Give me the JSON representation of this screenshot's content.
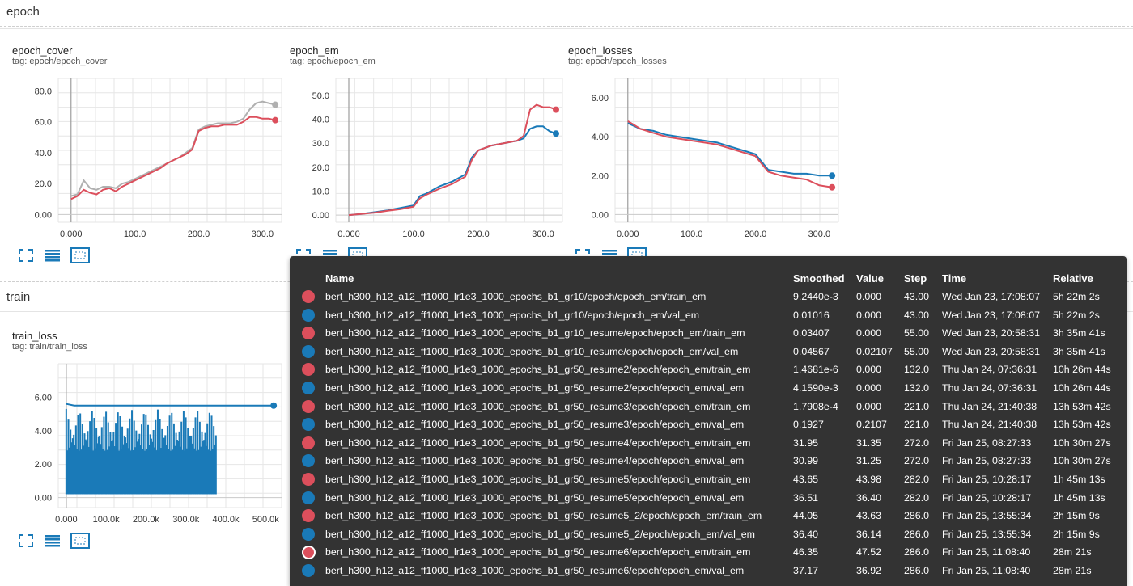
{
  "sections": {
    "epoch": "epoch",
    "train": "train"
  },
  "colors": {
    "red": "#dc4f5c",
    "blue": "#1a7ab8",
    "gray": "#b0b0b0"
  },
  "cards": [
    {
      "title": "epoch_cover",
      "tag": "tag: epoch/epoch_cover",
      "y_ticks": [
        "80.0",
        "60.0",
        "40.0",
        "20.0",
        "0.00"
      ],
      "x_ticks": [
        "0.000",
        "100.0",
        "200.0",
        "300.0"
      ],
      "controls": [
        "expand-icon",
        "data-table-icon",
        "fit-domain-icon"
      ]
    },
    {
      "title": "epoch_em",
      "tag": "tag: epoch/epoch_em",
      "y_ticks": [
        "50.0",
        "40.0",
        "30.0",
        "20.0",
        "10.0",
        "0.00"
      ],
      "x_ticks": [
        "0.000",
        "100.0",
        "200.0",
        "300.0"
      ],
      "controls": [
        "expand-icon",
        "data-table-icon",
        "fit-domain-icon"
      ]
    },
    {
      "title": "epoch_losses",
      "tag": "tag: epoch/epoch_losses",
      "y_ticks": [
        "6.00",
        "4.00",
        "2.00",
        "0.00"
      ],
      "x_ticks": [
        "0.000",
        "100.0",
        "200.0",
        "300.0"
      ],
      "controls": [
        "expand-icon",
        "data-table-icon",
        "fit-domain-icon"
      ]
    },
    {
      "title": "train_loss",
      "tag": "tag: train/train_loss",
      "y_ticks": [
        "6.00",
        "4.00",
        "2.00",
        "0.00"
      ],
      "x_ticks": [
        "0.000",
        "100.0k",
        "200.0k",
        "300.0k",
        "400.0k",
        "500.0k"
      ],
      "controls": [
        "expand-icon",
        "data-table-icon",
        "fit-domain-icon"
      ]
    }
  ],
  "tooltip": {
    "headers": {
      "name": "Name",
      "smoothed": "Smoothed",
      "value": "Value",
      "step": "Step",
      "time": "Time",
      "relative": "Relative"
    },
    "rows": [
      {
        "color": "red",
        "name": "bert_h300_h12_a12_ff1000_lr1e3_1000_epochs_b1_gr10/epoch/epoch_em/train_em",
        "smoothed": "9.2440e-3",
        "value": "0.000",
        "step": "43.00",
        "time": "Wed Jan 23, 17:08:07",
        "relative": "5h 22m 2s"
      },
      {
        "color": "blue",
        "name": "bert_h300_h12_a12_ff1000_lr1e3_1000_epochs_b1_gr10/epoch/epoch_em/val_em",
        "smoothed": "0.01016",
        "value": "0.000",
        "step": "43.00",
        "time": "Wed Jan 23, 17:08:07",
        "relative": "5h 22m 2s"
      },
      {
        "color": "red",
        "name": "bert_h300_h12_a12_ff1000_lr1e3_1000_epochs_b1_gr10_resume/epoch/epoch_em/train_em",
        "smoothed": "0.03407",
        "value": "0.000",
        "step": "55.00",
        "time": "Wed Jan 23, 20:58:31",
        "relative": "3h 35m 41s"
      },
      {
        "color": "blue",
        "name": "bert_h300_h12_a12_ff1000_lr1e3_1000_epochs_b1_gr10_resume/epoch/epoch_em/val_em",
        "smoothed": "0.04567",
        "value": "0.02107",
        "step": "55.00",
        "time": "Wed Jan 23, 20:58:31",
        "relative": "3h 35m 41s"
      },
      {
        "color": "red",
        "name": "bert_h300_h12_a12_ff1000_lr1e3_1000_epochs_b1_gr50_resume2/epoch/epoch_em/train_em",
        "smoothed": "1.4681e-6",
        "value": "0.000",
        "step": "132.0",
        "time": "Thu Jan 24, 07:36:31",
        "relative": "10h 26m 44s"
      },
      {
        "color": "blue",
        "name": "bert_h300_h12_a12_ff1000_lr1e3_1000_epochs_b1_gr50_resume2/epoch/epoch_em/val_em",
        "smoothed": "4.1590e-3",
        "value": "0.000",
        "step": "132.0",
        "time": "Thu Jan 24, 07:36:31",
        "relative": "10h 26m 44s"
      },
      {
        "color": "red",
        "name": "bert_h300_h12_a12_ff1000_lr1e3_1000_epochs_b1_gr50_resume3/epoch/epoch_em/train_em",
        "smoothed": "1.7908e-4",
        "value": "0.000",
        "step": "221.0",
        "time": "Thu Jan 24, 21:40:38",
        "relative": "13h 53m 42s"
      },
      {
        "color": "blue",
        "name": "bert_h300_h12_a12_ff1000_lr1e3_1000_epochs_b1_gr50_resume3/epoch/epoch_em/val_em",
        "smoothed": "0.1927",
        "value": "0.2107",
        "step": "221.0",
        "time": "Thu Jan 24, 21:40:38",
        "relative": "13h 53m 42s"
      },
      {
        "color": "red",
        "name": "bert_h300_h12_a12_ff1000_lr1e3_1000_epochs_b1_gr50_resume4/epoch/epoch_em/train_em",
        "smoothed": "31.95",
        "value": "31.35",
        "step": "272.0",
        "time": "Fri Jan 25, 08:27:33",
        "relative": "10h 30m 27s"
      },
      {
        "color": "blue",
        "name": "bert_h300_h12_a12_ff1000_lr1e3_1000_epochs_b1_gr50_resume4/epoch/epoch_em/val_em",
        "smoothed": "30.99",
        "value": "31.25",
        "step": "272.0",
        "time": "Fri Jan 25, 08:27:33",
        "relative": "10h 30m 27s"
      },
      {
        "color": "red",
        "name": "bert_h300_h12_a12_ff1000_lr1e3_1000_epochs_b1_gr50_resume5/epoch/epoch_em/train_em",
        "smoothed": "43.65",
        "value": "43.98",
        "step": "282.0",
        "time": "Fri Jan 25, 10:28:17",
        "relative": "1h 45m 13s"
      },
      {
        "color": "blue",
        "name": "bert_h300_h12_a12_ff1000_lr1e3_1000_epochs_b1_gr50_resume5/epoch/epoch_em/val_em",
        "smoothed": "36.51",
        "value": "36.40",
        "step": "282.0",
        "time": "Fri Jan 25, 10:28:17",
        "relative": "1h 45m 13s"
      },
      {
        "color": "red",
        "name": "bert_h300_h12_a12_ff1000_lr1e3_1000_epochs_b1_gr50_resume5_2/epoch/epoch_em/train_em",
        "smoothed": "44.05",
        "value": "43.63",
        "step": "286.0",
        "time": "Fri Jan 25, 13:55:34",
        "relative": "2h 15m 9s"
      },
      {
        "color": "blue",
        "name": "bert_h300_h12_a12_ff1000_lr1e3_1000_epochs_b1_gr50_resume5_2/epoch/epoch_em/val_em",
        "smoothed": "36.40",
        "value": "36.14",
        "step": "286.0",
        "time": "Fri Jan 25, 13:55:34",
        "relative": "2h 15m 9s"
      },
      {
        "color": "red",
        "name": "bert_h300_h12_a12_ff1000_lr1e3_1000_epochs_b1_gr50_resume6/epoch/epoch_em/train_em",
        "smoothed": "46.35",
        "value": "47.52",
        "step": "286.0",
        "time": "Fri Jan 25, 11:08:40",
        "relative": "28m 21s",
        "highlighted": true
      },
      {
        "color": "blue",
        "name": "bert_h300_h12_a12_ff1000_lr1e3_1000_epochs_b1_gr50_resume6/epoch/epoch_em/val_em",
        "smoothed": "37.17",
        "value": "36.92",
        "step": "286.0",
        "time": "Fri Jan 25, 11:08:40",
        "relative": "28m 21s"
      }
    ]
  },
  "chart_data": [
    {
      "type": "line",
      "title": "epoch_cover",
      "subtitle": "tag: epoch/epoch_cover",
      "xlim": [
        -20,
        330
      ],
      "ylim": [
        -5,
        88
      ],
      "series": [
        {
          "color": "gray",
          "x": [
            0,
            10,
            20,
            30,
            40,
            50,
            60,
            70,
            80,
            90,
            100,
            110,
            120,
            130,
            140,
            150,
            160,
            170,
            180,
            190,
            200,
            210,
            220,
            230,
            240,
            250,
            260,
            270,
            280,
            290,
            300,
            310,
            320
          ],
          "y": [
            12,
            13,
            22,
            17,
            16,
            18,
            18,
            17,
            20,
            21,
            23,
            25,
            27,
            29,
            31,
            33,
            35,
            37,
            40,
            43,
            55,
            57,
            58,
            59,
            59,
            59,
            60,
            62,
            68,
            72,
            73,
            72,
            71
          ]
        },
        {
          "color": "red",
          "x": [
            0,
            10,
            20,
            30,
            40,
            50,
            60,
            70,
            80,
            90,
            100,
            110,
            120,
            130,
            140,
            150,
            160,
            170,
            180,
            190,
            200,
            210,
            220,
            230,
            240,
            250,
            260,
            270,
            280,
            290,
            300,
            310,
            320
          ],
          "y": [
            10,
            12,
            16,
            14,
            13,
            16,
            17,
            15,
            18,
            20,
            22,
            24,
            26,
            28,
            30,
            33,
            35,
            37,
            39,
            42,
            54,
            56,
            57,
            57,
            58,
            58,
            58,
            60,
            63,
            63,
            62,
            62,
            61
          ]
        }
      ]
    },
    {
      "type": "line",
      "title": "epoch_em",
      "subtitle": "tag: epoch/epoch_em",
      "xlim": [
        -20,
        330
      ],
      "ylim": [
        -3,
        57
      ],
      "series": [
        {
          "color": "blue",
          "x": [
            0,
            20,
            40,
            60,
            80,
            100,
            110,
            120,
            140,
            160,
            180,
            190,
            200,
            220,
            240,
            260,
            270,
            280,
            290,
            300,
            310,
            320
          ],
          "y": [
            0,
            0.5,
            1.2,
            2,
            3,
            4,
            8,
            9,
            12,
            14,
            17,
            24,
            27,
            29,
            30,
            31,
            32,
            36,
            37,
            37,
            35,
            34
          ]
        },
        {
          "color": "red",
          "x": [
            0,
            20,
            40,
            60,
            80,
            100,
            110,
            120,
            140,
            160,
            180,
            190,
            200,
            220,
            240,
            260,
            270,
            280,
            290,
            300,
            310,
            320
          ],
          "y": [
            0,
            0.5,
            1,
            1.8,
            2.5,
            3.5,
            7,
            8.5,
            11,
            13,
            16,
            23,
            27,
            29,
            30,
            31,
            33,
            44,
            46,
            45,
            45,
            44
          ]
        }
      ]
    },
    {
      "type": "line",
      "title": "epoch_losses",
      "subtitle": "tag: epoch/epoch_losses",
      "xlim": [
        -20,
        330
      ],
      "ylim": [
        -0.4,
        7
      ],
      "series": [
        {
          "color": "blue",
          "x": [
            0,
            20,
            40,
            60,
            80,
            100,
            120,
            140,
            160,
            180,
            200,
            220,
            240,
            260,
            280,
            300,
            320
          ],
          "y": [
            4.7,
            4.4,
            4.3,
            4.1,
            4.0,
            3.9,
            3.8,
            3.7,
            3.5,
            3.3,
            3.1,
            2.3,
            2.2,
            2.1,
            2.1,
            2.0,
            2.0
          ]
        },
        {
          "color": "red",
          "x": [
            0,
            20,
            40,
            60,
            80,
            100,
            120,
            140,
            160,
            180,
            200,
            220,
            240,
            260,
            280,
            300,
            320
          ],
          "y": [
            4.8,
            4.4,
            4.2,
            4.0,
            3.9,
            3.8,
            3.7,
            3.6,
            3.4,
            3.2,
            3.0,
            2.2,
            2.0,
            1.9,
            1.8,
            1.5,
            1.4
          ]
        }
      ]
    },
    {
      "type": "line",
      "title": "train_loss",
      "subtitle": "tag: train/train_loss",
      "xlim": [
        -20000,
        540000
      ],
      "ylim": [
        -0.6,
        8
      ],
      "series": [
        {
          "color": "blue",
          "x": [
            0,
            20000,
            40000,
            60000,
            80000,
            100000,
            120000,
            140000,
            160000,
            180000,
            200000,
            220000,
            240000,
            260000,
            280000,
            300000,
            320000,
            340000,
            360000,
            380000,
            400000,
            450000,
            500000,
            520000
          ],
          "y": [
            5.6,
            5.5,
            5.5,
            5.5,
            5.5,
            5.5,
            5.5,
            5.5,
            5.5,
            5.5,
            5.5,
            5.5,
            5.5,
            5.5,
            5.5,
            5.5,
            5.5,
            5.5,
            5.5,
            5.5,
            5.5,
            5.5,
            5.5,
            5.5
          ]
        }
      ]
    }
  ]
}
